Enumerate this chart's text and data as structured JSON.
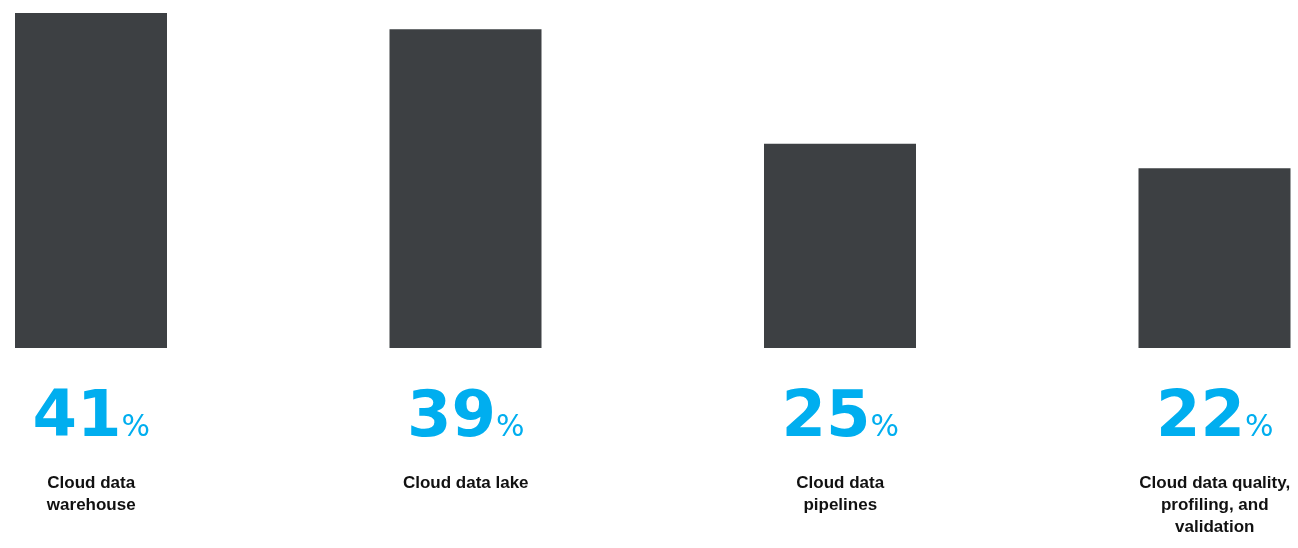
{
  "chart_data": {
    "type": "bar",
    "categories": [
      "Cloud data warehouse",
      "Cloud data lake",
      "Cloud data pipelines",
      "Cloud data quality, profiling, and validation"
    ],
    "values": [
      41,
      39,
      25,
      22
    ],
    "value_labels": [
      "41%",
      "39%",
      "25%",
      "22%"
    ],
    "color": "#3d4043"
  }
}
